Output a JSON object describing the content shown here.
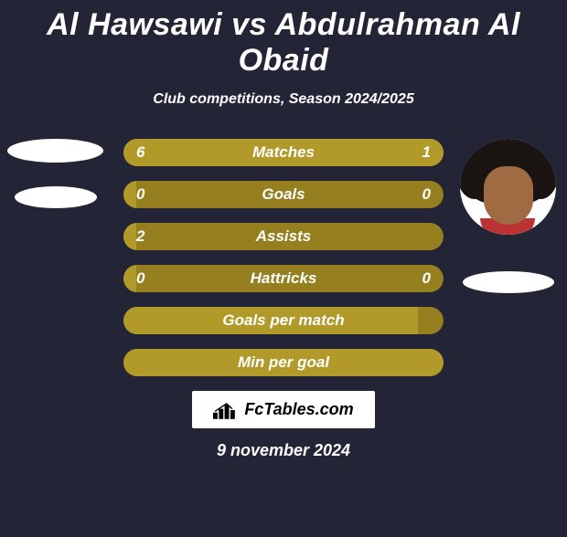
{
  "title": "Al Hawsawi vs Abdulrahman Al Obaid",
  "subtitle": "Club competitions, Season 2024/2025",
  "date": "9 november 2024",
  "logo_text": "FcTables.com",
  "colors": {
    "background": "#232436",
    "bar_dark": "#967f1e",
    "bar_light": "#b29a2a",
    "text": "#ffffff"
  },
  "ovals": {
    "left1": true,
    "left2": true,
    "right1": true
  },
  "avatar_right_visible": true,
  "stats": [
    {
      "label": "Matches",
      "left_val": "6",
      "right_val": "1",
      "left_pct": 76,
      "right_pct": 24,
      "show_left": true,
      "show_right": true
    },
    {
      "label": "Goals",
      "left_val": "0",
      "right_val": "0",
      "left_pct": 4,
      "right_pct": 0,
      "show_left": true,
      "show_right": true
    },
    {
      "label": "Assists",
      "left_val": "2",
      "right_val": "",
      "left_pct": 4,
      "right_pct": 0,
      "show_left": true,
      "show_right": false
    },
    {
      "label": "Hattricks",
      "left_val": "0",
      "right_val": "0",
      "left_pct": 4,
      "right_pct": 0,
      "show_left": true,
      "show_right": true
    },
    {
      "label": "Goals per match",
      "left_val": "",
      "right_val": "",
      "left_pct": 92,
      "right_pct": 0,
      "show_left": false,
      "show_right": false
    },
    {
      "label": "Min per goal",
      "left_val": "",
      "right_val": "",
      "left_pct": 100,
      "right_pct": 0,
      "show_left": false,
      "show_right": false
    }
  ]
}
